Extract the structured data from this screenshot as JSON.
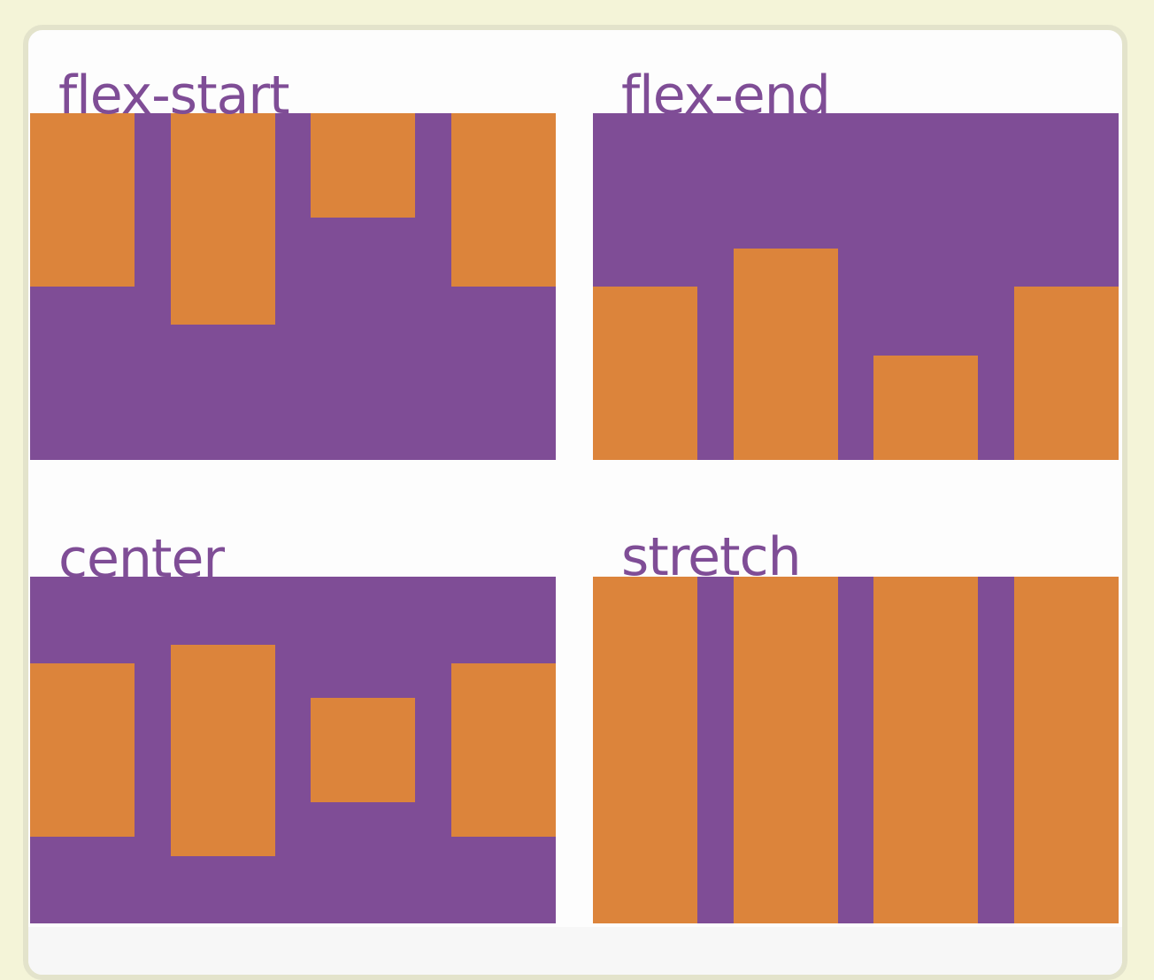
{
  "colors": {
    "page_background": "#f4f4d8",
    "card_background": "#fdfdfd",
    "container": "#7f4d96",
    "item": "#dc843b",
    "label": "#7f4d96"
  },
  "panels": [
    {
      "label": "flex-start",
      "align": "flex-start"
    },
    {
      "label": "flex-end",
      "align": "flex-end"
    },
    {
      "label": "center",
      "align": "center"
    },
    {
      "label": "stretch",
      "align": "stretch"
    }
  ],
  "item_height_ratios": [
    0.5,
    0.61,
    0.3,
    0.5
  ]
}
